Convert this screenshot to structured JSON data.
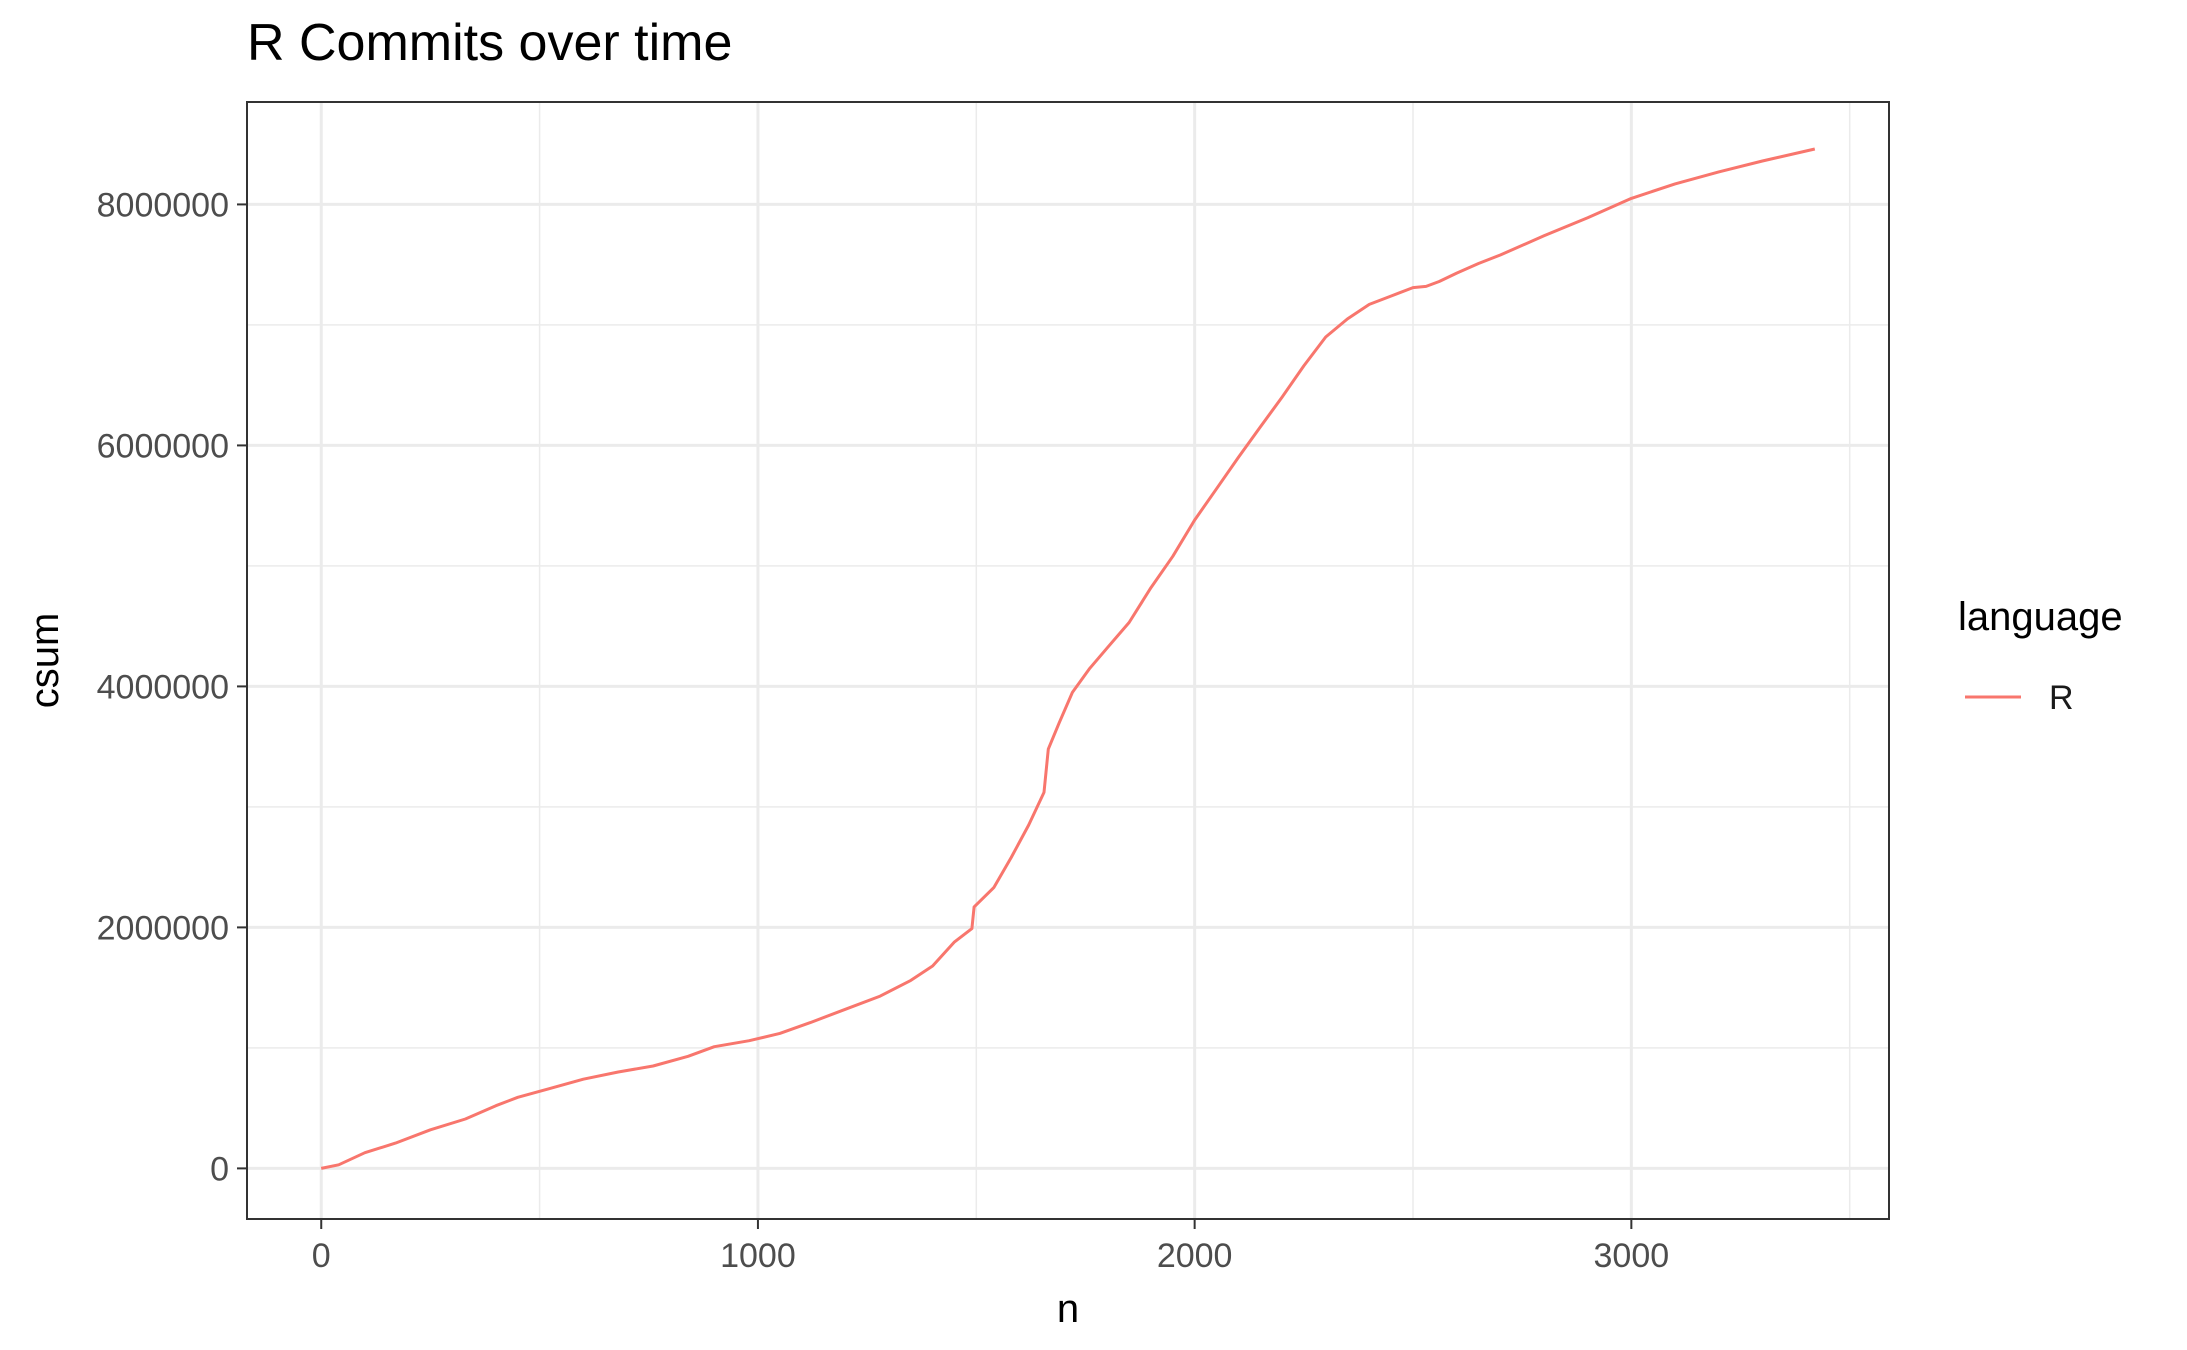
{
  "chart_data": {
    "type": "line",
    "title": "R Commits over time",
    "xlabel": "n",
    "ylabel": "csum",
    "xlim": [
      -170,
      3590
    ],
    "ylim": [
      -420000,
      8850000
    ],
    "x_ticks": [
      0,
      1000,
      2000,
      3000
    ],
    "x_tick_labels": [
      "0",
      "1000",
      "2000",
      "3000"
    ],
    "x_minor_ticks": [
      500,
      1500,
      2500,
      3500
    ],
    "y_ticks": [
      0,
      2000000,
      4000000,
      6000000,
      8000000
    ],
    "y_tick_labels": [
      "0",
      "2000000",
      "4000000",
      "6000000",
      "8000000"
    ],
    "y_minor_ticks": [
      1000000,
      3000000,
      5000000,
      7000000
    ],
    "grid": true,
    "legend": {
      "title": "language",
      "position": "right",
      "entries": [
        {
          "label": "R",
          "color": "#f8766d"
        }
      ]
    },
    "series": [
      {
        "name": "R",
        "color": "#f8766d",
        "x": [
          0,
          40,
          100,
          170,
          250,
          330,
          400,
          450,
          520,
          600,
          680,
          760,
          840,
          900,
          980,
          1050,
          1120,
          1200,
          1280,
          1350,
          1400,
          1450,
          1490,
          1495,
          1540,
          1580,
          1620,
          1655,
          1665,
          1690,
          1720,
          1760,
          1800,
          1850,
          1900,
          1950,
          2000,
          2050,
          2100,
          2150,
          2200,
          2250,
          2300,
          2350,
          2400,
          2450,
          2500,
          2530,
          2560,
          2600,
          2650,
          2700,
          2800,
          2900,
          3000,
          3100,
          3200,
          3300,
          3420
        ],
        "values": [
          0,
          30000,
          130000,
          210000,
          320000,
          410000,
          520000,
          590000,
          660000,
          740000,
          800000,
          850000,
          930000,
          1010000,
          1060000,
          1120000,
          1210000,
          1320000,
          1430000,
          1560000,
          1680000,
          1880000,
          1990000,
          2170000,
          2330000,
          2580000,
          2850000,
          3120000,
          3480000,
          3700000,
          3950000,
          4150000,
          4320000,
          4530000,
          4820000,
          5080000,
          5380000,
          5640000,
          5900000,
          6150000,
          6400000,
          6660000,
          6900000,
          7050000,
          7170000,
          7240000,
          7310000,
          7320000,
          7360000,
          7430000,
          7510000,
          7580000,
          7740000,
          7890000,
          8050000,
          8170000,
          8270000,
          8360000,
          8460000
        ]
      }
    ]
  }
}
